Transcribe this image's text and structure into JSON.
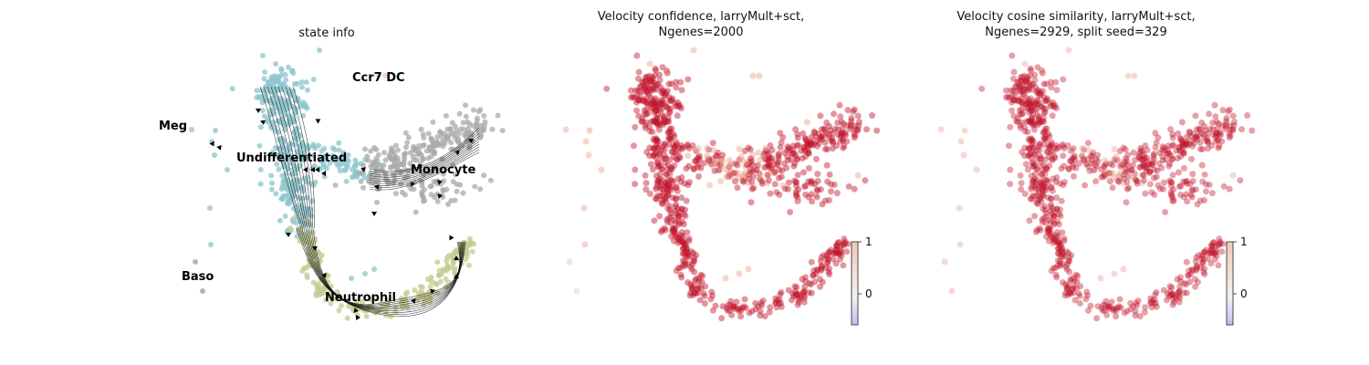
{
  "panels": [
    {
      "title_lines": [
        "state info"
      ],
      "cluster_labels": [
        {
          "text": "Meg"
        },
        {
          "text": "Ccr7 DC"
        },
        {
          "text": "Undifferentiated"
        },
        {
          "text": "Monocyte"
        },
        {
          "text": "Baso"
        },
        {
          "text": "Neutrophil"
        }
      ]
    },
    {
      "title_lines": [
        "Velocity confidence, larryMult+sct,",
        "Ngenes=2000"
      ],
      "colorbar": {
        "ticks": [
          "1",
          "0"
        ]
      }
    },
    {
      "title_lines": [
        "Velocity cosine similarity, larryMult+sct,",
        "Ngenes=2929, split seed=329"
      ],
      "colorbar": {
        "ticks": [
          "1",
          "0"
        ]
      }
    }
  ],
  "colors": {
    "undifferentiated": "#8ec4cc",
    "monocyte": "#a9a9a9",
    "neutrophil": "#c5c98f",
    "baso": "#8aa3b5",
    "ccr7dc": "#f4c9b0",
    "high": "#c0152a",
    "mid": "#e8a08a",
    "low": "#c6cdf0"
  },
  "chart_data": [
    {
      "type": "scatter",
      "subtype": "embedding with velocity streamlines",
      "title": "state info",
      "categories": [
        "Undifferentiated",
        "Monocyte",
        "Neutrophil",
        "Meg",
        "Baso",
        "Ccr7 DC"
      ],
      "axes": "hidden",
      "grid": false
    },
    {
      "type": "scatter",
      "title": "Velocity confidence, larryMult+sct, Ngenes=2000",
      "color_value": "velocity confidence",
      "colorbar_range": [
        -0.5,
        1
      ],
      "colorbar_ticks": [
        1,
        0
      ],
      "axes": "hidden",
      "grid": false
    },
    {
      "type": "scatter",
      "title": "Velocity cosine similarity, larryMult+sct, Ngenes=2929, split seed=329",
      "color_value": "velocity cosine similarity",
      "colorbar_range": [
        -0.5,
        1
      ],
      "colorbar_ticks": [
        1,
        0
      ],
      "axes": "hidden",
      "grid": false
    }
  ]
}
